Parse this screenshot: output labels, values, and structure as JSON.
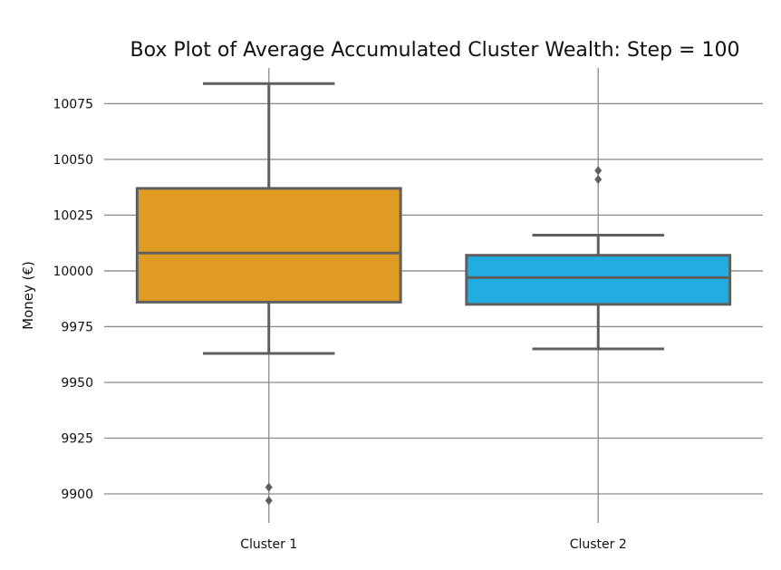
{
  "chart_data": {
    "type": "box",
    "title": "Box Plot of Average Accumulated Cluster Wealth: Step = 100",
    "xlabel": "",
    "ylabel": "Money (€)",
    "ylim": [
      9887,
      10091
    ],
    "yticks": [
      9900,
      9925,
      9950,
      9975,
      10000,
      10025,
      10050,
      10075
    ],
    "grid": true,
    "categories": [
      "Cluster 1",
      "Cluster 2"
    ],
    "boxes": [
      {
        "category": "Cluster 1",
        "color": "#E09C22",
        "whisker_low": 9963,
        "q1": 9986,
        "median": 10008,
        "q3": 10037,
        "whisker_high": 10084,
        "outliers": [
          9903,
          9897
        ]
      },
      {
        "category": "Cluster 2",
        "color": "#21ADE0",
        "whisker_low": 9965,
        "q1": 9985,
        "median": 9997,
        "q3": 10007,
        "whisker_high": 10016,
        "outliers": [
          10045,
          10041
        ]
      }
    ],
    "colors": {
      "grid": "#8a8a8a",
      "edge": "#5f5f5f",
      "text": "#111111"
    }
  }
}
